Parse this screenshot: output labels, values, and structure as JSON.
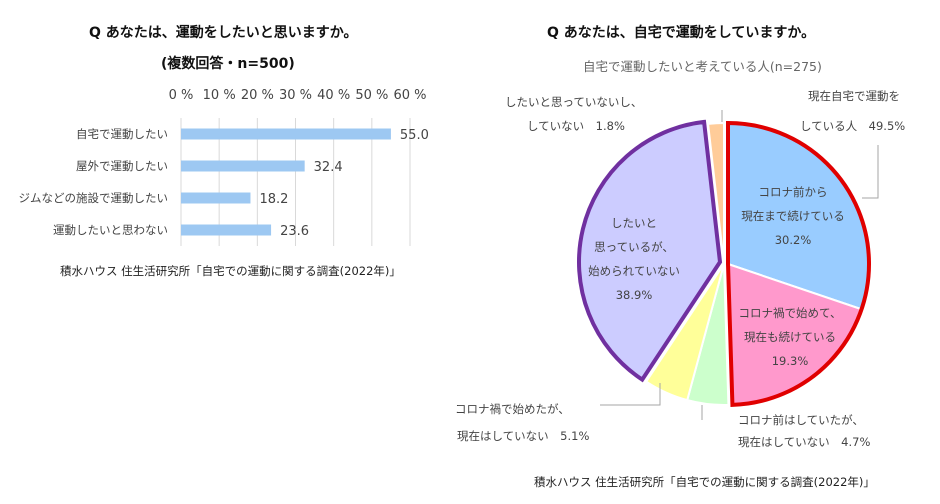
{
  "left": {
    "title_line1": "Q あなたは、運動をしたいと思いますか。",
    "title_line2": "(複数回答・n=500)",
    "source": "積水ハウス 住生活研究所「自宅での運動に関する調査(2022年)」"
  },
  "right": {
    "title": "Q あなたは、自宅で運動をしていますか。",
    "subtitle": "自宅で運動したいと考えている人(n=275)",
    "group_label_line1": "現在自宅で運動を",
    "group_label_line2": "している人　49.5%",
    "source": "積水ハウス 住生活研究所「自宅での運動に関する調査(2022年)」"
  },
  "chart_data": [
    {
      "type": "bar",
      "orientation": "horizontal",
      "categories": [
        "自宅で運動したい",
        "屋外で運動したい",
        "ジムなどの施設で運動したい",
        "運動したいと思わない"
      ],
      "values": [
        55.0,
        32.4,
        18.2,
        23.6
      ],
      "value_labels": [
        "55.0",
        "32.4",
        "18.2",
        "23.6"
      ],
      "xlim": [
        0,
        60
      ],
      "xticks": [
        "0 %",
        "10 %",
        "20 %",
        "30 %",
        "40 %",
        "50 %",
        "60 %"
      ],
      "grid": true,
      "color": "#9dc8f2"
    },
    {
      "type": "pie",
      "slices": [
        {
          "name": "コロナ前から現在まで続けている",
          "label_lines": [
            "コロナ前から",
            "現在まで続けている",
            "30.2%"
          ],
          "value": 30.2,
          "color": "#99ccff",
          "group": "red"
        },
        {
          "name": "コロナ禍で始めて、現在も続けている",
          "label_lines": [
            "コロナ禍で始めて、",
            "現在も続けている",
            "19.3%"
          ],
          "value": 19.3,
          "color": "#ff99cc",
          "group": "red"
        },
        {
          "name": "コロナ前はしていたが、現在はしていない",
          "label_lines": [
            "コロナ前はしていたが、",
            "現在はしていない　4.7%"
          ],
          "value": 4.7,
          "color": "#ccffcc",
          "group": ""
        },
        {
          "name": "コロナ禍で始めたが、現在はしていない",
          "label_lines": [
            "コロナ禍で始めたが、",
            "現在はしていない　5.1%"
          ],
          "value": 5.1,
          "color": "#ffff99",
          "group": ""
        },
        {
          "name": "したいと思っているが、始められていない",
          "label_lines": [
            "したいと",
            "思っているが、",
            "始められていない",
            "38.9%"
          ],
          "value": 38.9,
          "color": "#ccccff",
          "group": "purple"
        },
        {
          "name": "したいと思っていないし、していない",
          "label_lines": [
            "したいと思っていないし、",
            "していない　1.8%"
          ],
          "value": 1.8,
          "color": "#ffcc99",
          "group": ""
        }
      ],
      "outline_colors": {
        "red": "#e00000",
        "purple": "#7030a0"
      }
    }
  ]
}
